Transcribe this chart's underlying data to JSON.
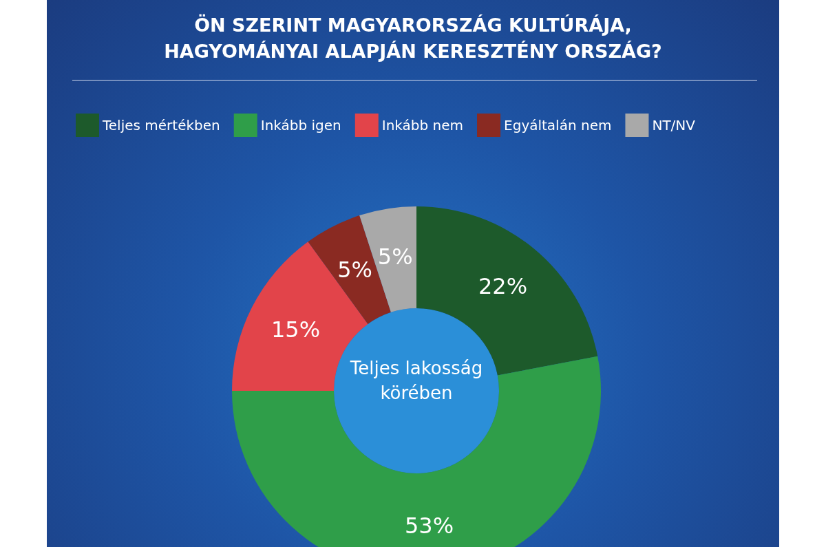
{
  "chart_data": {
    "type": "donut",
    "title": "ÖN SZERINT MAGYARORSZÁG KULTÚRÁJA,\nHAGYOMÁNYAI ALAPJÁN KERESZTÉNY ORSZÁG?",
    "categories": [
      "Teljes mértékben",
      "Inkább igen",
      "Inkább nem",
      "Egyáltalán nem",
      "NT/NV"
    ],
    "values": [
      22,
      53,
      15,
      5,
      5
    ],
    "colors": [
      "#1d5a2b",
      "#2f9e49",
      "#e2444a",
      "#8a2a22",
      "#a9a9a9"
    ],
    "value_labels": [
      "22%",
      "53%",
      "15%",
      "5%",
      "5%"
    ],
    "legend": "top left",
    "annotations": [
      "Teljes lakosság\nkörében"
    ]
  }
}
